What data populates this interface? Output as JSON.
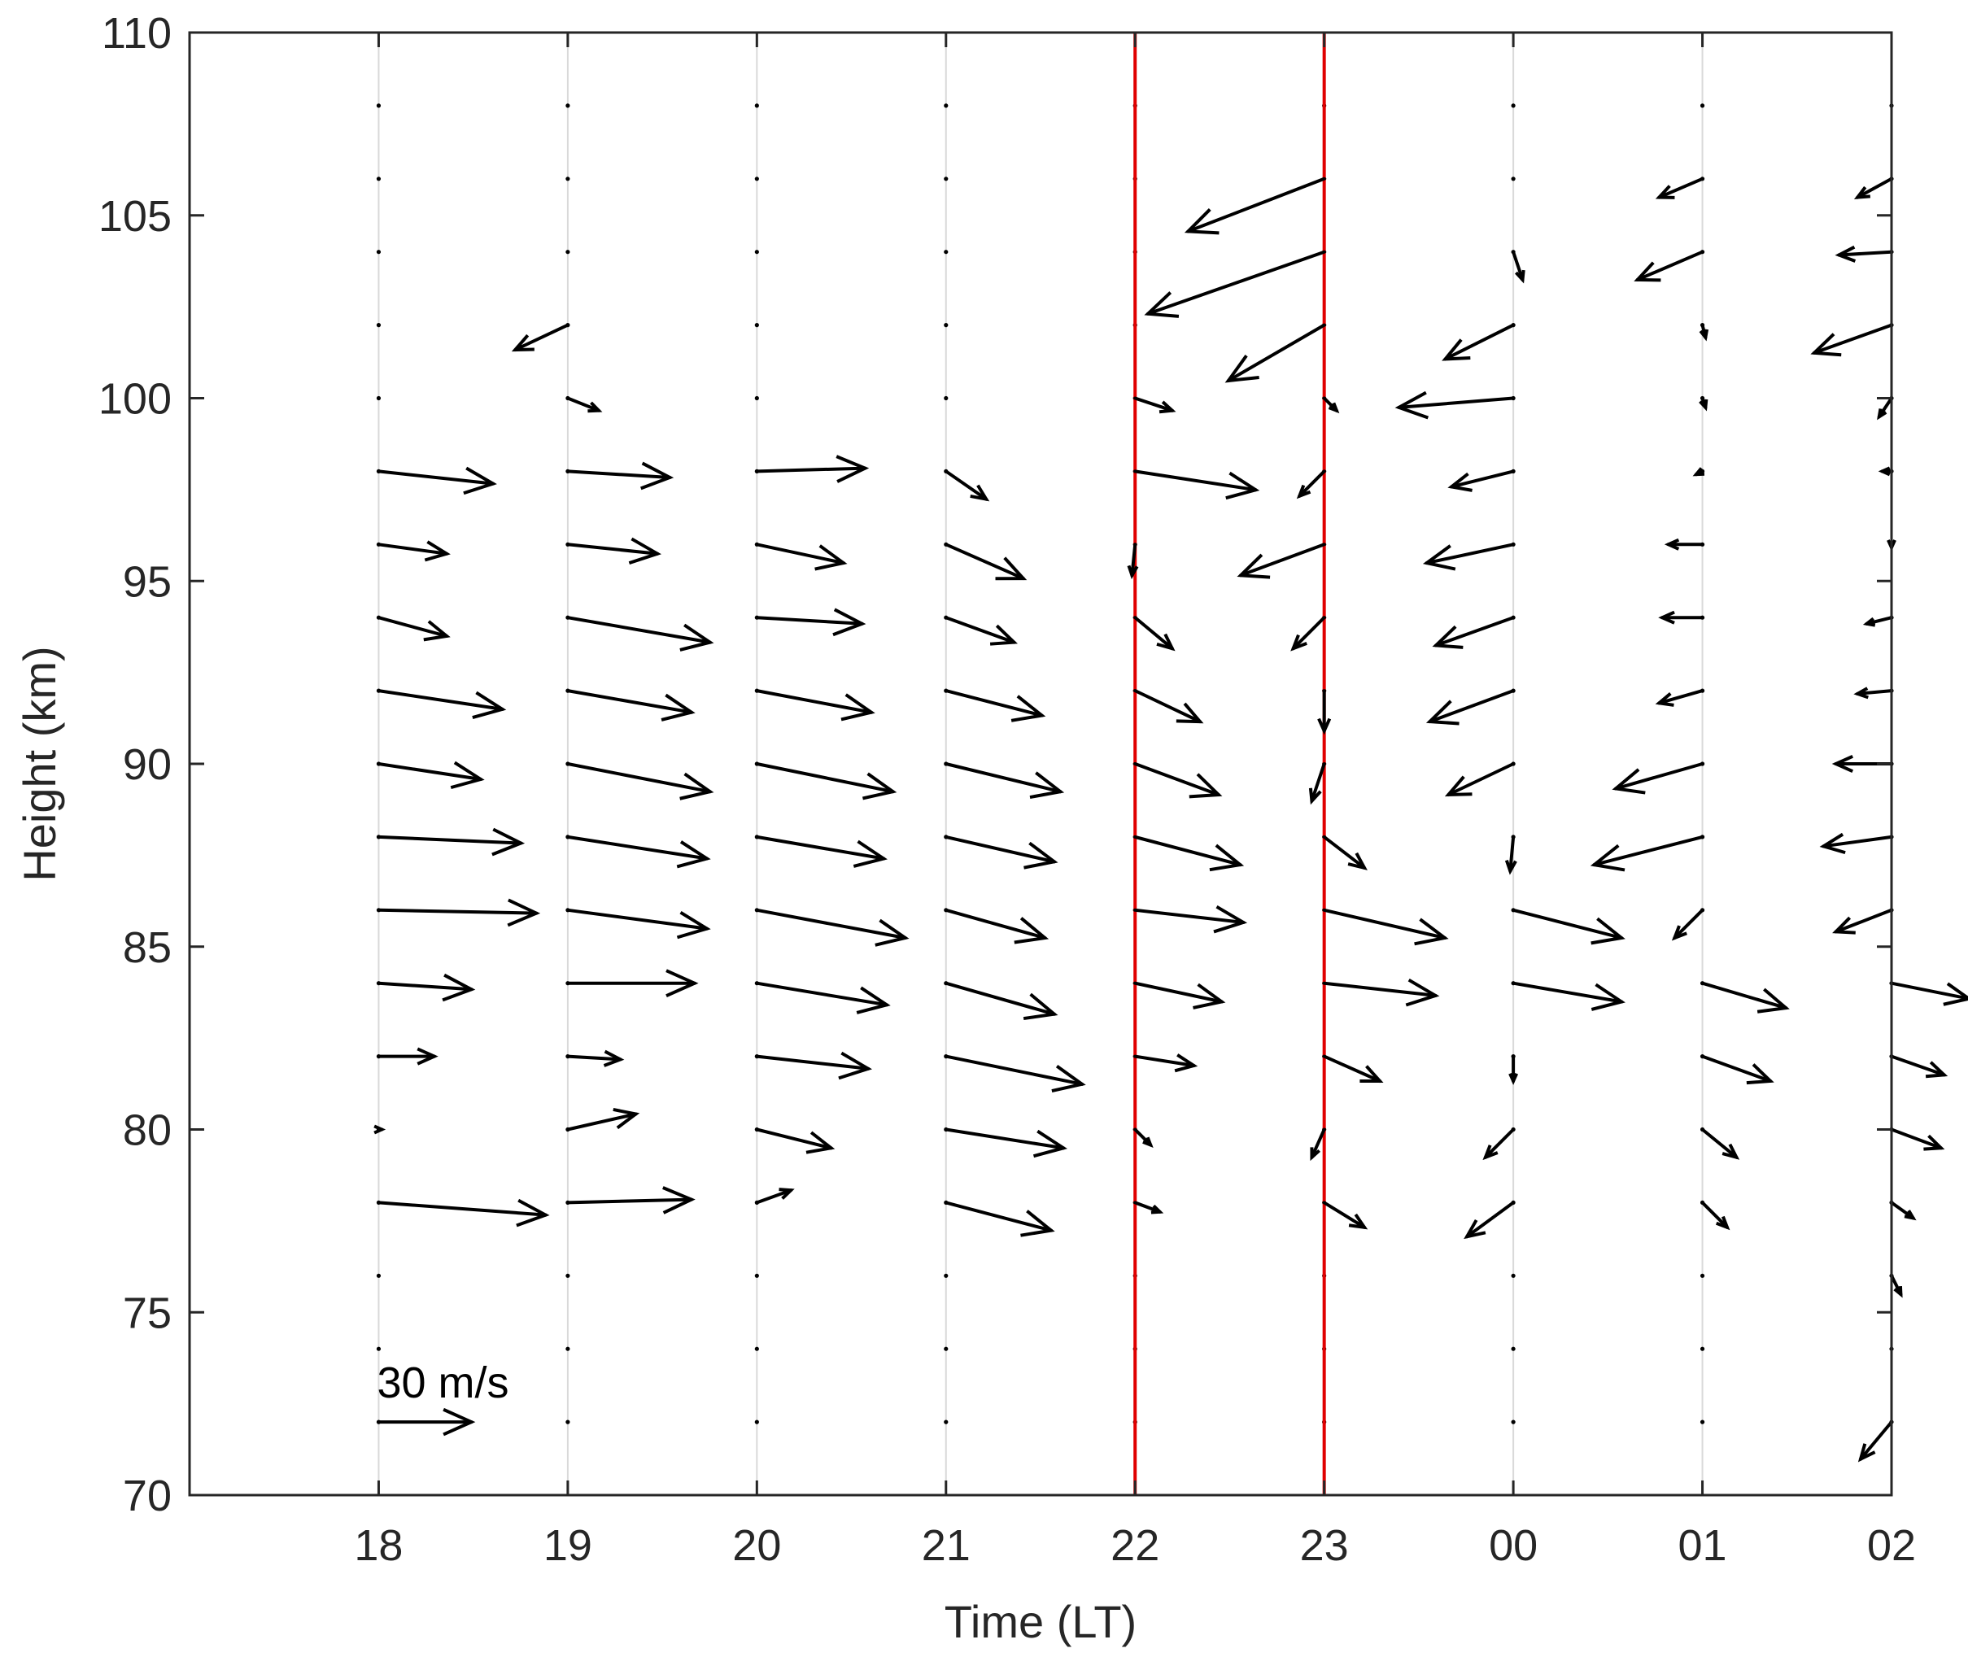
{
  "chart_data": {
    "type": "quiver",
    "title": "",
    "xlabel": "Time (LT)",
    "ylabel": "Height (km)",
    "xlim": [
      -1,
      8
    ],
    "ylim": [
      70,
      110
    ],
    "x_ticks": [
      0,
      1,
      2,
      3,
      4,
      5,
      6,
      7,
      8
    ],
    "x_tick_labels": [
      "18",
      "19",
      "20",
      "21",
      "22",
      "23",
      "00",
      "01",
      "02"
    ],
    "y_ticks": [
      70,
      75,
      80,
      85,
      90,
      95,
      100,
      105,
      110
    ],
    "y_tick_labels": [
      "70",
      "75",
      "80",
      "85",
      "90",
      "95",
      "100",
      "105",
      "110"
    ],
    "grid": "vertical dotted lines at each hour",
    "marker_lines": {
      "x": [
        4,
        5
      ],
      "color": "#e00000"
    },
    "arrow_color": "#000000",
    "scale_arrow": {
      "speed_ms": 30,
      "label": "30 m/s",
      "x": 0,
      "y": 72
    },
    "units_note": "u and v in m/s",
    "vectors": [
      [
        0,
        98,
        37,
        -4
      ],
      [
        0,
        96,
        22,
        -3
      ],
      [
        0,
        94,
        22,
        -6
      ],
      [
        0,
        92,
        40,
        -6
      ],
      [
        0,
        90,
        33,
        -5
      ],
      [
        0,
        88,
        46,
        -2
      ],
      [
        0,
        86,
        51,
        -1
      ],
      [
        0,
        84,
        30,
        -2
      ],
      [
        0,
        82,
        18,
        0
      ],
      [
        0,
        80,
        1,
        0
      ],
      [
        0,
        78,
        54,
        -4
      ],
      [
        1,
        102,
        -17,
        -8
      ],
      [
        1,
        100,
        10,
        -4
      ],
      [
        1,
        98,
        33,
        -2
      ],
      [
        1,
        96,
        29,
        -3
      ],
      [
        1,
        94,
        46,
        -8
      ],
      [
        1,
        92,
        40,
        -7
      ],
      [
        1,
        90,
        46,
        -9
      ],
      [
        1,
        88,
        45,
        -7
      ],
      [
        1,
        86,
        45,
        -6
      ],
      [
        1,
        84,
        41,
        0
      ],
      [
        1,
        82,
        17,
        -1
      ],
      [
        1,
        80,
        22,
        5
      ],
      [
        1,
        78,
        40,
        1
      ],
      [
        2,
        98,
        35,
        1
      ],
      [
        2,
        96,
        28,
        -6
      ],
      [
        2,
        94,
        34,
        -2
      ],
      [
        2,
        92,
        37,
        -7
      ],
      [
        2,
        90,
        44,
        -9
      ],
      [
        2,
        88,
        41,
        -7
      ],
      [
        2,
        86,
        48,
        -9
      ],
      [
        2,
        84,
        42,
        -7
      ],
      [
        2,
        82,
        36,
        -4
      ],
      [
        2,
        80,
        24,
        -6
      ],
      [
        2,
        78,
        11,
        4
      ],
      [
        3,
        98,
        13,
        -9
      ],
      [
        3,
        96,
        25,
        -11
      ],
      [
        3,
        94,
        22,
        -8
      ],
      [
        3,
        92,
        31,
        -8
      ],
      [
        3,
        90,
        37,
        -9
      ],
      [
        3,
        88,
        35,
        -8
      ],
      [
        3,
        86,
        32,
        -9
      ],
      [
        3,
        84,
        35,
        -10
      ],
      [
        3,
        82,
        44,
        -9
      ],
      [
        3,
        80,
        38,
        -6
      ],
      [
        3,
        78,
        34,
        -9
      ],
      [
        4,
        100,
        12,
        -4
      ],
      [
        4,
        98,
        39,
        -6
      ],
      [
        4,
        96,
        -1,
        -10
      ],
      [
        4,
        94,
        12,
        -10
      ],
      [
        4,
        92,
        21,
        -10
      ],
      [
        4,
        90,
        27,
        -10
      ],
      [
        4,
        88,
        34,
        -9
      ],
      [
        4,
        86,
        35,
        -4
      ],
      [
        4,
        84,
        28,
        -6
      ],
      [
        4,
        82,
        19,
        -3
      ],
      [
        4,
        80,
        5,
        -5
      ],
      [
        4,
        78,
        8,
        -3
      ],
      [
        5,
        106,
        -44,
        -17
      ],
      [
        5,
        104,
        -57,
        -20
      ],
      [
        5,
        102,
        -31,
        -18
      ],
      [
        5,
        100,
        4,
        -4
      ],
      [
        5,
        98,
        -8,
        -8
      ],
      [
        5,
        96,
        -27,
        -10
      ],
      [
        5,
        94,
        -10,
        -10
      ],
      [
        5,
        92,
        0,
        -13
      ],
      [
        5,
        90,
        -4,
        -12
      ],
      [
        5,
        88,
        13,
        -10
      ],
      [
        5,
        86,
        39,
        -9
      ],
      [
        5,
        84,
        36,
        -4
      ],
      [
        5,
        82,
        18,
        -8
      ],
      [
        5,
        80,
        -4,
        -9
      ],
      [
        5,
        78,
        13,
        -8
      ],
      [
        6,
        102,
        -22,
        -11
      ],
      [
        6,
        100,
        -37,
        -3
      ],
      [
        6,
        98,
        -20,
        -5
      ],
      [
        6,
        96,
        -28,
        -6
      ],
      [
        6,
        94,
        -25,
        -9
      ],
      [
        6,
        92,
        -27,
        -10
      ],
      [
        6,
        90,
        -21,
        -10
      ],
      [
        6,
        88,
        -1,
        -11
      ],
      [
        6,
        86,
        35,
        -9
      ],
      [
        6,
        84,
        35,
        -6
      ],
      [
        6,
        82,
        0,
        -8
      ],
      [
        6,
        80,
        -9,
        -9
      ],
      [
        6,
        78,
        -15,
        -11
      ],
      [
        6,
        104,
        3,
        -9
      ],
      [
        7,
        106,
        -14,
        -6
      ],
      [
        7,
        104,
        -21,
        -9
      ],
      [
        7,
        102,
        1,
        -4
      ],
      [
        7,
        100,
        1,
        -3
      ],
      [
        7,
        98,
        -2,
        -1
      ],
      [
        7,
        96,
        -11,
        0
      ],
      [
        7,
        94,
        -13,
        0
      ],
      [
        7,
        92,
        -14,
        -4
      ],
      [
        7,
        90,
        -28,
        -8
      ],
      [
        7,
        88,
        -35,
        -9
      ],
      [
        7,
        86,
        -9,
        -9
      ],
      [
        7,
        84,
        27,
        -8
      ],
      [
        7,
        82,
        22,
        -8
      ],
      [
        7,
        80,
        11,
        -9
      ],
      [
        7,
        78,
        8,
        -8
      ],
      [
        8,
        106,
        -11,
        -6
      ],
      [
        8,
        104,
        -17,
        -1
      ],
      [
        8,
        102,
        -25,
        -9
      ],
      [
        8,
        100,
        -4,
        -6
      ],
      [
        8,
        98,
        -3,
        0
      ],
      [
        8,
        96,
        0,
        -1
      ],
      [
        8,
        94,
        -8,
        -2
      ],
      [
        8,
        92,
        -11,
        -1
      ],
      [
        8,
        90,
        -18,
        0
      ],
      [
        8,
        88,
        -22,
        -3
      ],
      [
        8,
        86,
        -18,
        -7
      ],
      [
        8,
        84,
        25,
        -5
      ],
      [
        8,
        82,
        17,
        -6
      ],
      [
        8,
        80,
        16,
        -6
      ],
      [
        8,
        78,
        7,
        -5
      ],
      [
        8,
        76,
        3,
        -6
      ],
      [
        8,
        72,
        -10,
        -12
      ]
    ]
  }
}
